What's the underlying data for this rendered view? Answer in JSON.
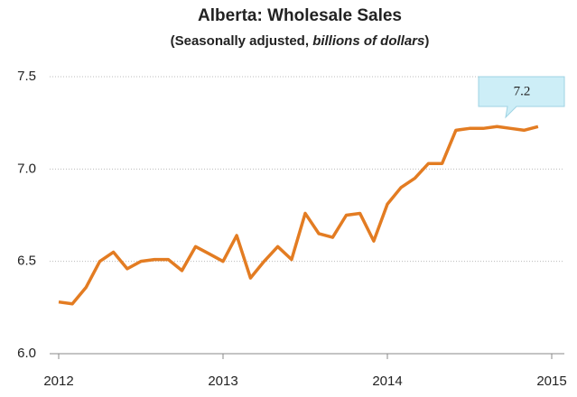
{
  "chart_data": {
    "type": "line",
    "title": "Alberta: Wholesale Sales",
    "subtitle": [
      "(Seasonally adjusted, ",
      "billions of dollars",
      ")"
    ],
    "annotation": "7.2",
    "x": [
      2012,
      2012.083,
      2012.167,
      2012.25,
      2012.333,
      2012.417,
      2012.5,
      2012.583,
      2012.667,
      2012.75,
      2012.833,
      2012.917,
      2013,
      2013.083,
      2013.167,
      2013.25,
      2013.333,
      2013.417,
      2013.5,
      2013.583,
      2013.667,
      2013.75,
      2013.833,
      2013.917,
      2014,
      2014.083,
      2014.167,
      2014.25,
      2014.333,
      2014.417,
      2014.5,
      2014.583,
      2014.667,
      2014.75,
      2014.833,
      2014.917
    ],
    "series": [
      {
        "name": "Wholesale sales",
        "color": "#e37c22",
        "values": [
          6.28,
          6.27,
          6.36,
          6.5,
          6.55,
          6.46,
          6.5,
          6.51,
          6.51,
          6.45,
          6.58,
          6.54,
          6.5,
          6.64,
          6.41,
          6.5,
          6.58,
          6.51,
          6.76,
          6.65,
          6.63,
          6.75,
          6.76,
          6.61,
          6.81,
          6.9,
          6.95,
          7.03,
          7.03,
          7.21,
          7.22,
          7.22,
          7.23,
          7.22,
          7.21,
          7.23
        ]
      }
    ],
    "xlim": [
      2012,
      2015
    ],
    "xticks": [
      2012,
      2013,
      2014,
      2015
    ],
    "ylim": [
      6.0,
      7.5
    ],
    "yticks": [
      {
        "value": 6.0,
        "label": "6.0"
      },
      6.5,
      {
        "value": 7.0,
        "label": "7.0"
      },
      7.5
    ],
    "grid": true
  }
}
